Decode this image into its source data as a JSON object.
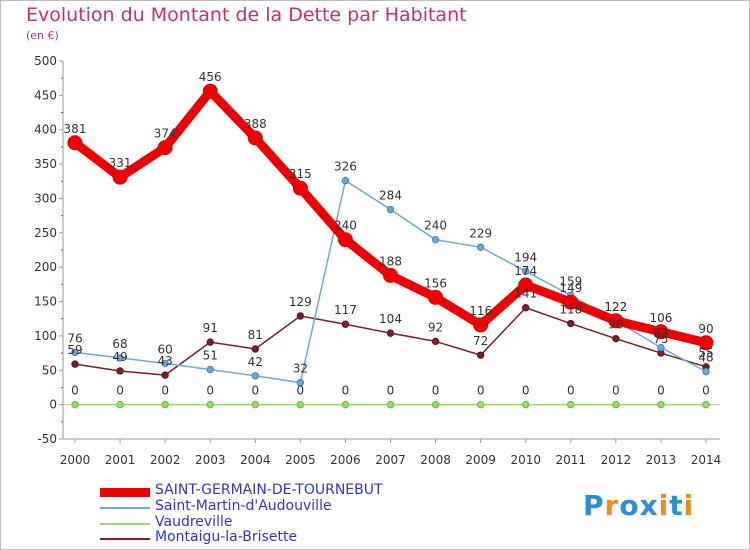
{
  "chart_data": {
    "type": "line",
    "title": "Evolution du Montant de la Dette par Habitant",
    "unit_label": "(en €)",
    "xlabel": "",
    "ylabel": "",
    "x": [
      "2000",
      "2001",
      "2002",
      "2003",
      "2004",
      "2005",
      "2006",
      "2007",
      "2008",
      "2009",
      "2010",
      "2011",
      "2012",
      "2013",
      "2014"
    ],
    "ylim": [
      -50,
      500
    ],
    "yticks": [
      -50,
      0,
      50,
      100,
      150,
      200,
      250,
      300,
      350,
      400,
      450,
      500
    ],
    "grid": false,
    "legend_position": "bottom-left",
    "series": [
      {
        "name": "SAINT-GERMAIN-DE-TOURNEBUT",
        "color": "#ee0000",
        "label_color": "#333333",
        "values": [
          381,
          331,
          374,
          456,
          388,
          315,
          240,
          188,
          156,
          116,
          174,
          149,
          122,
          106,
          90
        ],
        "labels": [
          "381",
          "331",
          "374",
          "456",
          "388",
          "315",
          "240",
          "188",
          "156",
          "116",
          "174",
          "149",
          "122",
          "106",
          "90"
        ]
      },
      {
        "name": "Saint-Martin-d'Audouville",
        "color": "#6fa8d6",
        "label_color": "#333333",
        "values": [
          76,
          68,
          60,
          51,
          42,
          32,
          326,
          284,
          240,
          229,
          194,
          159,
          122,
          83,
          48
        ],
        "labels": [
          "76",
          "68",
          "60",
          "51",
          "42",
          "32",
          "326",
          "284",
          "240",
          "229",
          "194",
          "159",
          "122",
          "83",
          "48"
        ]
      },
      {
        "name": "Vaudreville",
        "color": "#99dd66",
        "label_color": "#333333",
        "values": [
          0,
          0,
          0,
          0,
          0,
          0,
          0,
          0,
          0,
          0,
          0,
          0,
          0,
          0,
          0
        ],
        "labels": [
          "0",
          "0",
          "0",
          "0",
          "0",
          "0",
          "0",
          "0",
          "0",
          "0",
          "0",
          "0",
          "0",
          "0",
          "0"
        ]
      },
      {
        "name": "Montaigu-la-Brisette",
        "color": "#7a1f2a",
        "label_color": "#333333",
        "values": [
          59,
          49,
          43,
          91,
          81,
          129,
          117,
          104,
          92,
          72,
          141,
          118,
          96,
          75,
          55
        ],
        "labels": [
          "59",
          "49",
          "43",
          "91",
          "81",
          "129",
          "117",
          "104",
          "92",
          "72",
          "141",
          "118",
          "96",
          "75",
          "55"
        ]
      }
    ]
  },
  "legend": {
    "items": [
      {
        "label": "SAINT-GERMAIN-DE-TOURNEBUT",
        "color": "#ee0000",
        "text_color": "#3333cc"
      },
      {
        "label": "Saint-Martin-d'Audouville",
        "color": "#6fa8d6",
        "text_color": "#3333cc"
      },
      {
        "label": "Vaudreville",
        "color": "#99dd66",
        "text_color": "#3333cc"
      },
      {
        "label": "Montaigu-la-Brisette",
        "color": "#7a1f2a",
        "text_color": "#3333cc"
      }
    ]
  },
  "brand": {
    "letters": [
      "P",
      "r",
      "o",
      "x",
      "i",
      "t",
      "i"
    ],
    "colors": [
      "#2b8fd6",
      "#f08a1c",
      "#2b8fd6",
      "#2b8fd6",
      "#f08a1c",
      "#2b8fd6",
      "#f08a1c"
    ]
  }
}
